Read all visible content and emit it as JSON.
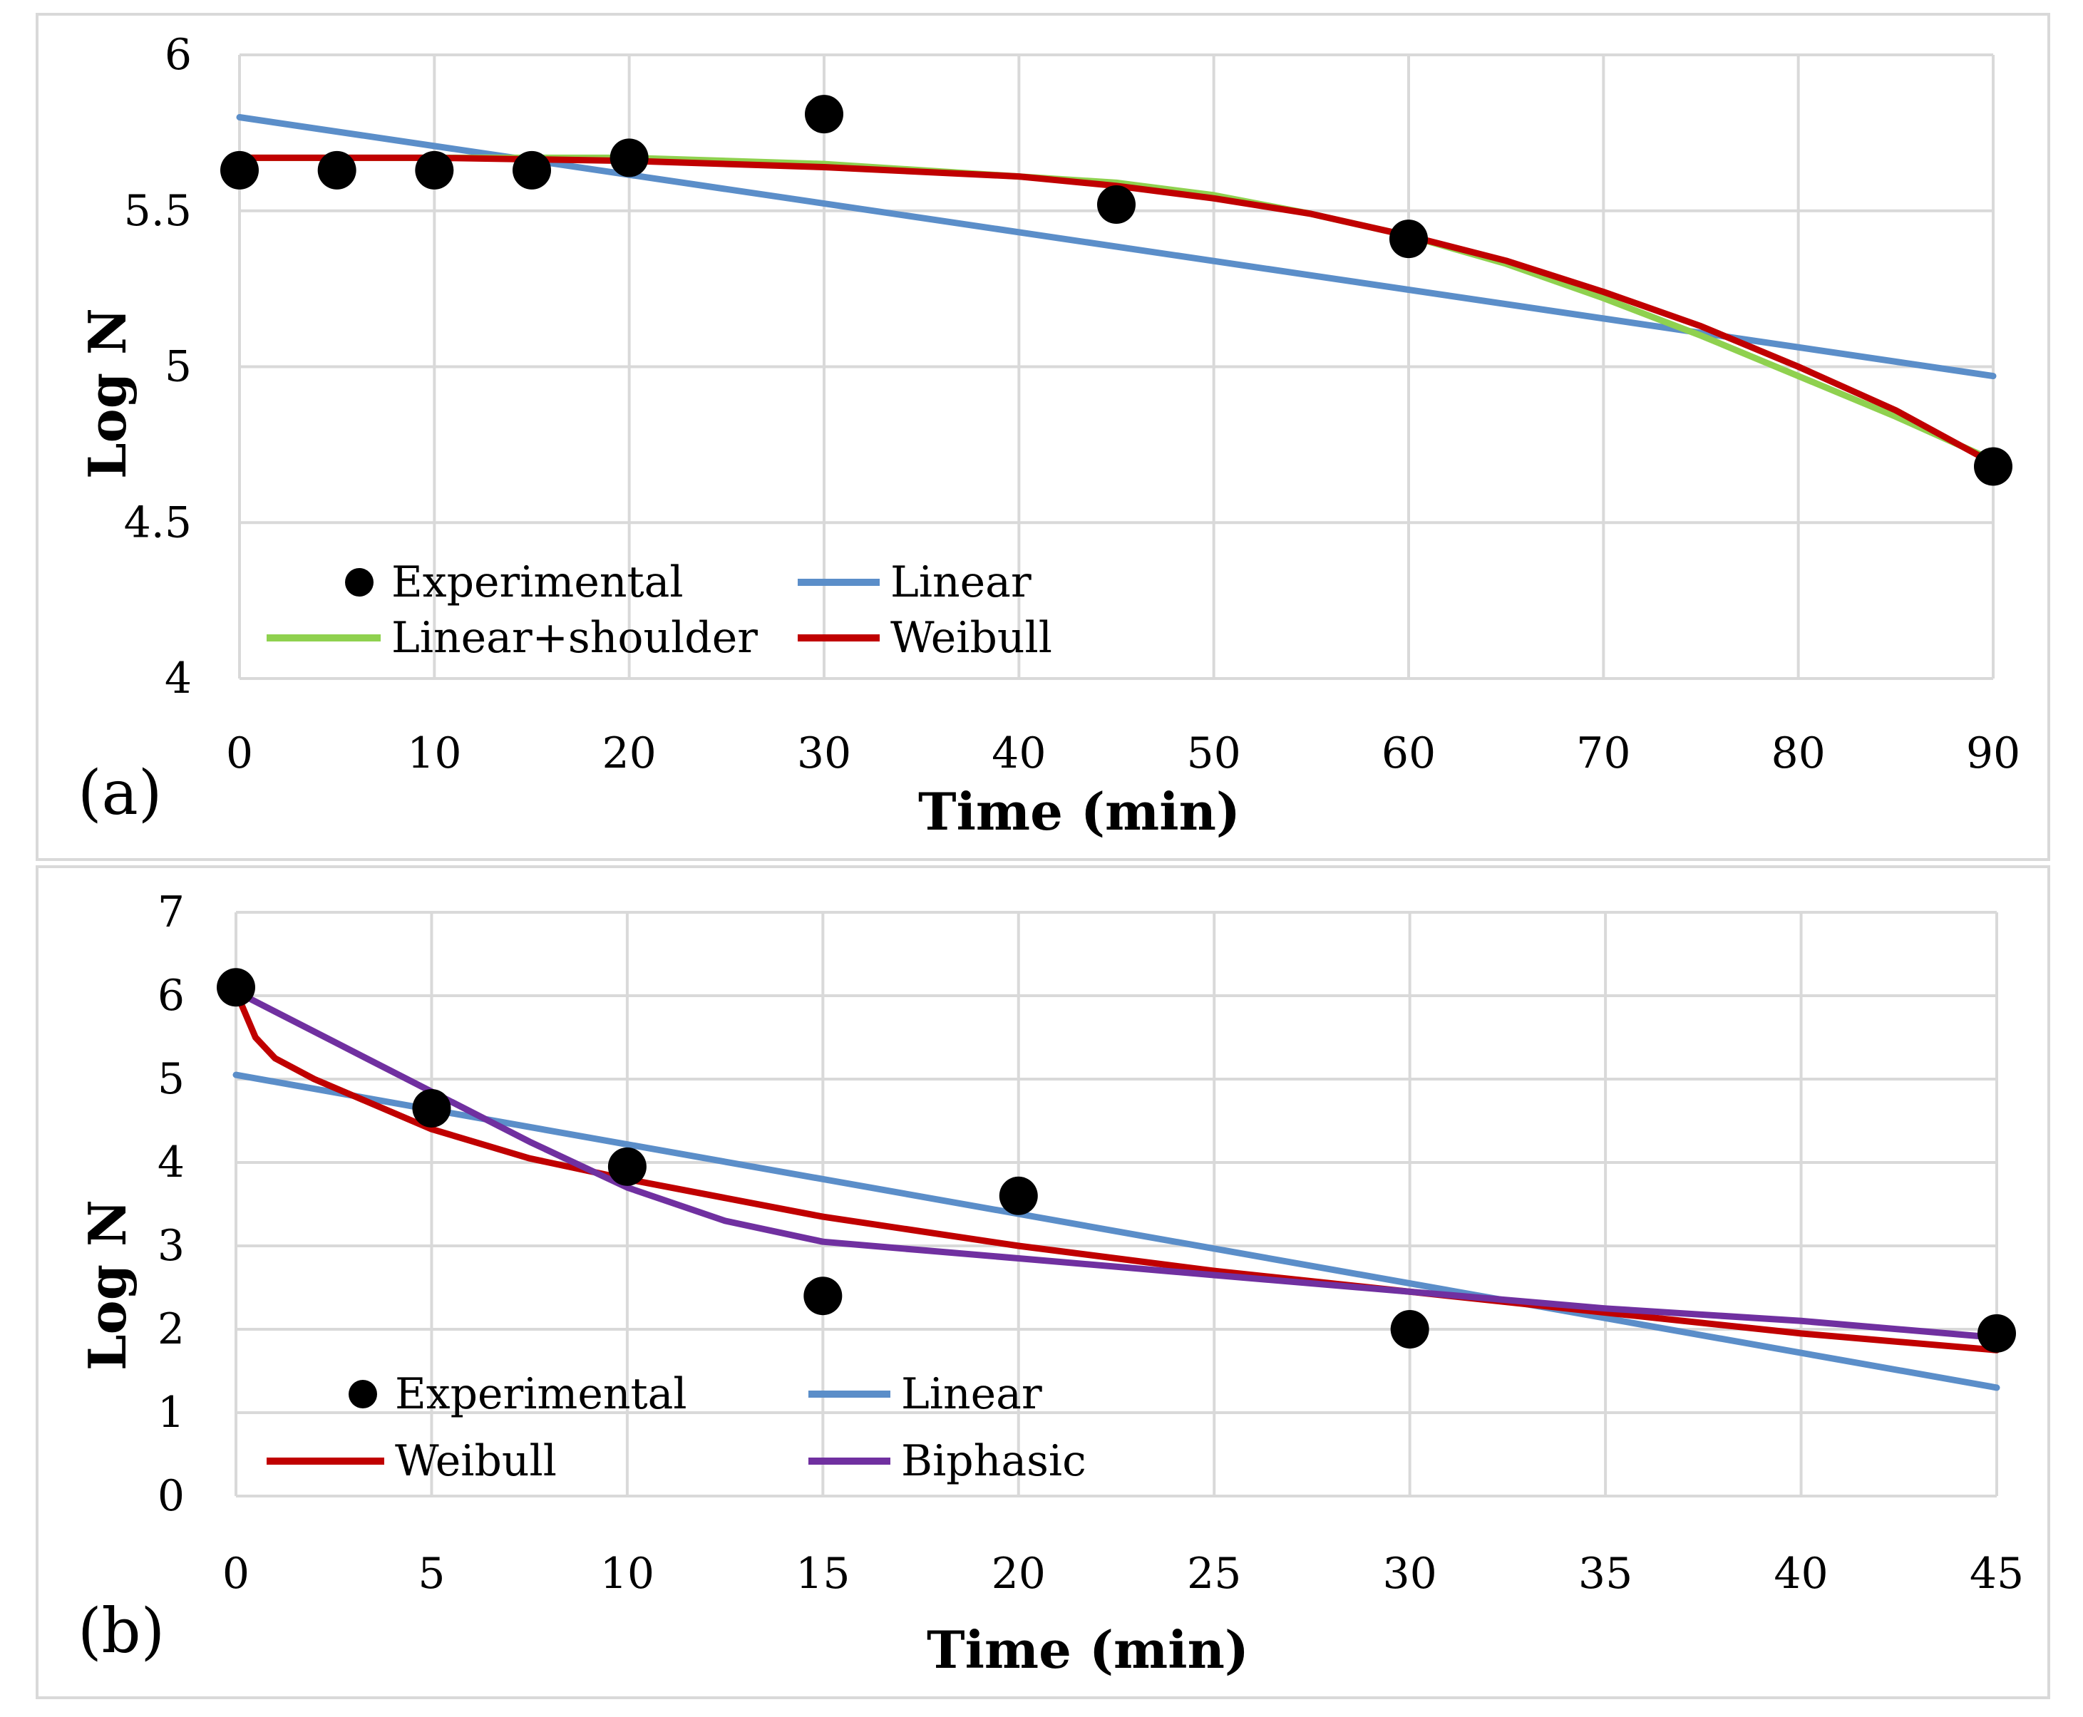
{
  "panels": [
    {
      "label": "(a)",
      "chart_data": {
        "type": "scatter",
        "xlabel": "Time (min)",
        "ylabel": "Log N",
        "xlim": [
          0,
          90
        ],
        "ylim": [
          4,
          6
        ],
        "xticks": [
          0,
          10,
          20,
          30,
          40,
          50,
          60,
          70,
          80,
          90
        ],
        "yticks": [
          4,
          4.5,
          5,
          5.5,
          6
        ],
        "grid": true,
        "legend_position": "bottom-left",
        "series": [
          {
            "name": "Experimental",
            "kind": "points",
            "color": "#000000",
            "x": [
              0,
              5,
              10,
              15,
              20,
              30,
              45,
              60,
              90
            ],
            "y": [
              5.63,
              5.63,
              5.63,
              5.63,
              5.67,
              5.81,
              5.52,
              5.41,
              4.68
            ]
          },
          {
            "name": "Linear",
            "kind": "line",
            "color": "#5b8ec9",
            "x": [
              0,
              90
            ],
            "y": [
              5.8,
              4.97
            ]
          },
          {
            "name": "Linear+shoulder",
            "kind": "line",
            "color": "#8fd14f",
            "x": [
              0,
              10,
              20,
              30,
              40,
              45,
              50,
              55,
              60,
              65,
              70,
              75,
              80,
              85,
              90
            ],
            "y": [
              5.67,
              5.67,
              5.67,
              5.65,
              5.61,
              5.59,
              5.55,
              5.49,
              5.42,
              5.33,
              5.22,
              5.1,
              4.97,
              4.84,
              4.7
            ]
          },
          {
            "name": "Weibull",
            "kind": "line",
            "color": "#c00000",
            "x": [
              0,
              10,
              20,
              30,
              40,
              45,
              50,
              55,
              60,
              65,
              70,
              75,
              80,
              85,
              90
            ],
            "y": [
              5.67,
              5.67,
              5.66,
              5.64,
              5.61,
              5.58,
              5.54,
              5.49,
              5.42,
              5.34,
              5.24,
              5.13,
              5.0,
              4.86,
              4.69
            ]
          }
        ]
      }
    },
    {
      "label": "(b)",
      "chart_data": {
        "type": "scatter",
        "xlabel": "Time (min)",
        "ylabel": "Log N",
        "xlim": [
          0,
          45
        ],
        "ylim": [
          0,
          7
        ],
        "xticks": [
          0,
          5,
          10,
          15,
          20,
          25,
          30,
          35,
          40,
          45
        ],
        "yticks": [
          0,
          1,
          2,
          3,
          4,
          5,
          6,
          7
        ],
        "grid": true,
        "legend_position": "bottom-left",
        "series": [
          {
            "name": "Experimental",
            "kind": "points",
            "color": "#000000",
            "x": [
              0,
              5,
              10,
              15,
              20,
              30,
              45
            ],
            "y": [
              6.1,
              4.65,
              3.95,
              2.4,
              3.6,
              2.0,
              1.95
            ]
          },
          {
            "name": "Linear",
            "kind": "line",
            "color": "#5b8ec9",
            "x": [
              0,
              45
            ],
            "y": [
              5.05,
              1.3
            ]
          },
          {
            "name": "Weibull",
            "kind": "line",
            "color": "#c00000",
            "x": [
              0,
              0.5,
              1,
              2,
              3,
              5,
              7.5,
              10,
              15,
              20,
              25,
              30,
              35,
              40,
              45
            ],
            "y": [
              6.05,
              5.5,
              5.25,
              5.0,
              4.8,
              4.4,
              4.05,
              3.8,
              3.35,
              3.0,
              2.7,
              2.45,
              2.2,
              1.95,
              1.75
            ]
          },
          {
            "name": "Biphasic",
            "kind": "line",
            "color": "#7030a0",
            "x": [
              0,
              2.5,
              5,
              7.5,
              10,
              12.5,
              15,
              17.5,
              20,
              25,
              30,
              35,
              40,
              45
            ],
            "y": [
              6.05,
              5.45,
              4.85,
              4.25,
              3.7,
              3.3,
              3.05,
              2.95,
              2.85,
              2.65,
              2.45,
              2.25,
              2.1,
              1.9
            ]
          }
        ]
      }
    }
  ]
}
